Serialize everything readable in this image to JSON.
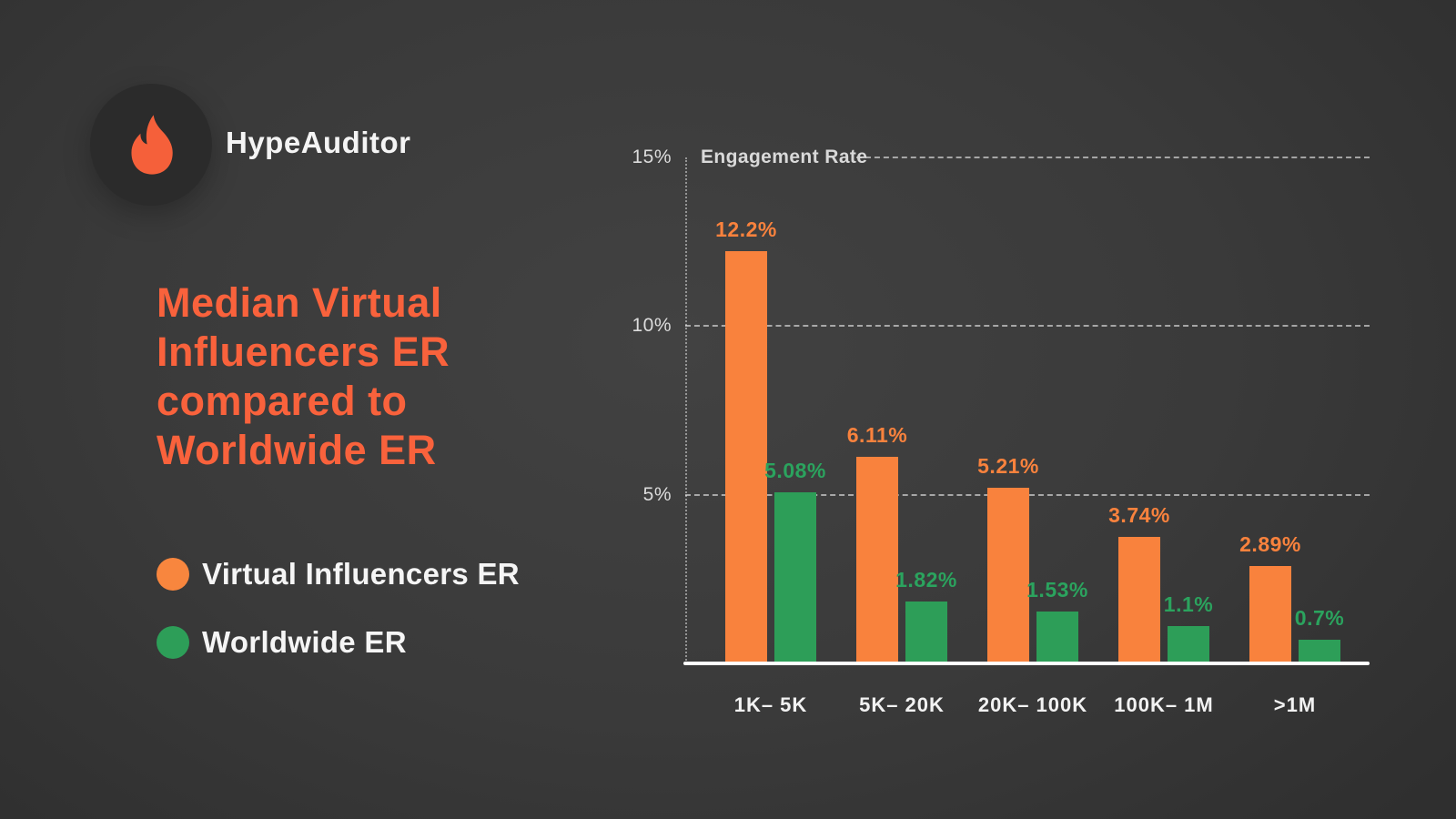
{
  "brand": {
    "name": "HypeAuditor",
    "logo_icon": "flame-icon",
    "logo_flame_color": "#F5603A",
    "logo_circle_color": "#2B2B2B"
  },
  "title": {
    "text": "Median Virtual Influencers ER compared to Worldwide ER",
    "color": "#F9623C"
  },
  "legend": {
    "items": [
      {
        "label": "Virtual Influencers ER",
        "color": "#F8863E"
      },
      {
        "label": "Worldwide ER",
        "color": "#2D9E58"
      }
    ]
  },
  "chart_data": {
    "type": "bar",
    "title": "Engagement Rate",
    "categories": [
      "1K– 5K",
      "5K– 20K",
      "20K– 100K",
      "100K– 1M",
      ">1M"
    ],
    "series": [
      {
        "name": "Virtual Influencers ER",
        "color": "#F9823D",
        "label_color": "#F9823D",
        "values": [
          12.2,
          6.11,
          5.21,
          3.74,
          2.89
        ],
        "labels": [
          "12.2%",
          "6.11%",
          "5.21%",
          "3.74%",
          "2.89%"
        ]
      },
      {
        "name": "Worldwide ER",
        "color": "#2D9E58",
        "label_color": "#2BA35E",
        "values": [
          5.08,
          1.82,
          1.53,
          1.1,
          0.7
        ],
        "labels": [
          "5.08%",
          "1.82%",
          "1.53%",
          "1.1%",
          "0.7%"
        ]
      }
    ],
    "y_axis": {
      "label": "Engagement Rate",
      "ticks": [
        "15%",
        "10%",
        "5%"
      ],
      "tick_values": [
        15,
        10,
        5
      ],
      "min": 0,
      "max": 15
    },
    "x_axis_note": "follower count ranges",
    "grid": "horizontal dashed lines at 5/10/15, dotted vertical axis, solid white baseline",
    "legend_position": "left panel"
  }
}
